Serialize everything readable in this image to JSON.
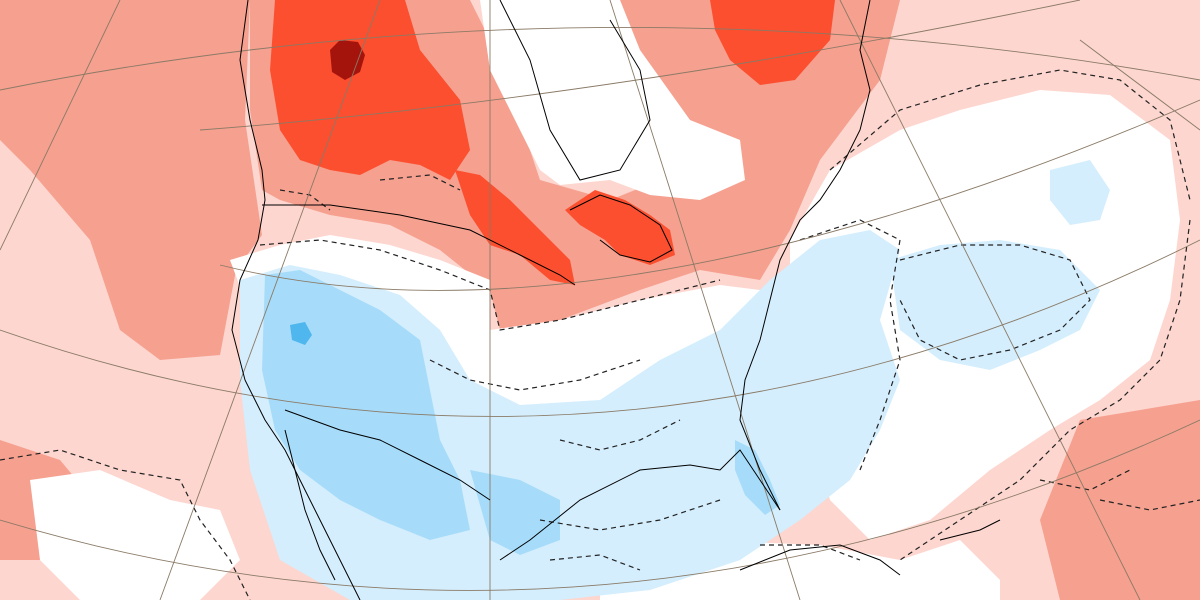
{
  "map": {
    "projection": "polar-stereographic",
    "region": "North America",
    "field": "anomaly",
    "palette": {
      "strong_positive": "#fb4f2f",
      "very_strong_positive": "#a5140c",
      "moderate_positive": "#f6a08f",
      "weak_positive": "#fdd6cf",
      "near_zero": "#ffffff",
      "weak_negative": "#d4eefd",
      "moderate_negative": "#a6dcfa",
      "strong_negative": "#4fb6ee",
      "coastline": "#000000",
      "graticule": "#8a7a66",
      "contour_dashed": "#222222"
    },
    "features": {
      "graticule": "on",
      "coastlines": "on",
      "dashed_contours": "on",
      "legend": "none",
      "title": ""
    }
  }
}
